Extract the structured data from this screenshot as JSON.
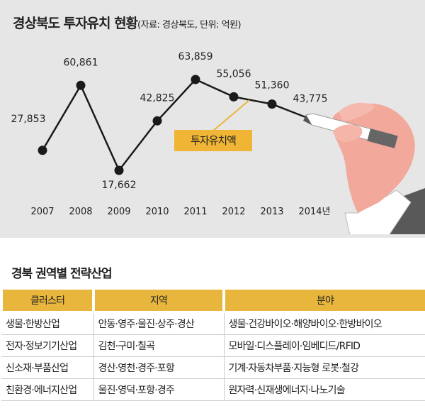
{
  "header": {
    "title": "경상북도 투자유치 현황",
    "subtitle": "(자료: 경상북도, 단위: 억원)"
  },
  "chart_data": {
    "type": "line",
    "title": "경상북도 투자유치 현황",
    "subtitle": "(자료: 경상북도, 단위: 억원)",
    "categories": [
      "2007",
      "2008",
      "2009",
      "2010",
      "2011",
      "2012",
      "2013",
      "2014년"
    ],
    "series": [
      {
        "name": "",
        "values": [
          27853,
          60861,
          17662,
          42825,
          63859,
          55056,
          51360,
          43775
        ]
      }
    ],
    "data_labels": [
      "27,853",
      "60,861",
      "17,662",
      "42,825",
      "63,859",
      "55,056",
      "51,360",
      "43,775"
    ],
    "annotation": "투자유치액",
    "grid": false,
    "legend": "none"
  },
  "section": {
    "title": "경북 권역별 전략산업"
  },
  "table": {
    "headers": [
      "클러스터",
      "지역",
      "분야"
    ],
    "rows": [
      [
        "생물·한방산업",
        "안동·영주·울진·상주·경산",
        "생물·건강바이오·해양바이오·한방바이오"
      ],
      [
        "전자·정보기기산업",
        "김천·구미·칠곡",
        "모바일·디스플레이·임베디드/RFID"
      ],
      [
        "신소재·부품산업",
        "경산·영천·경주·포항",
        "기계·자동차부품·지능형 로봇·철강"
      ],
      [
        "친환경·에너지산업",
        "울진·영덕·포항·경주",
        "원자력·신재생에너지·나노기술"
      ]
    ]
  },
  "colors": {
    "background": "#e6e6e6",
    "accent": "#e8b63c",
    "line": "#1a1a1a"
  },
  "illustration": {
    "icon": "hand-holding-pen-icon"
  }
}
